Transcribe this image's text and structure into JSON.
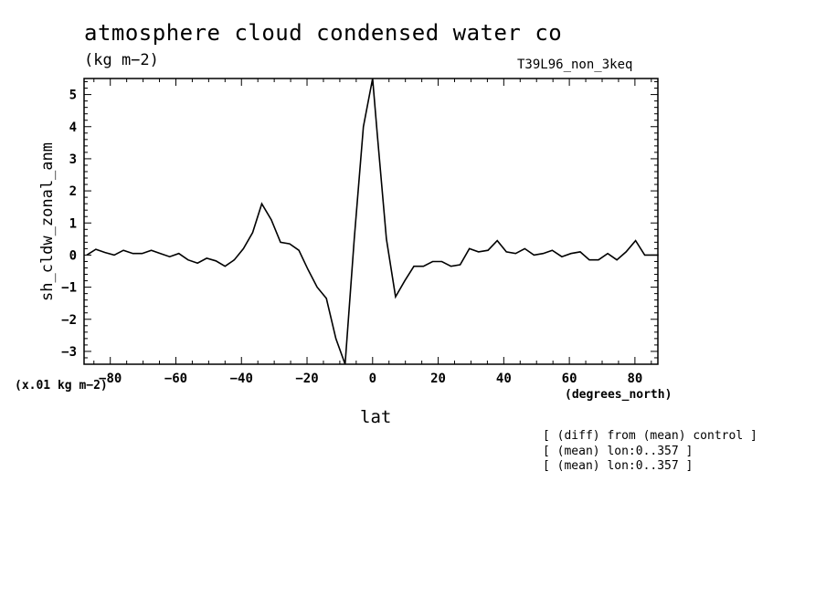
{
  "header": {
    "title": "atmosphere cloud condensed water co",
    "units": "(kg m−2)",
    "run": "T39L96_non_3keq"
  },
  "axes": {
    "ylabel": "sh_cldw_zonal_anm",
    "scale_note": "(x.01 kg m−2)",
    "xunits": "(degrees_north)",
    "xlabel": "lat"
  },
  "notes": [
    "[ (diff) from (mean) control ]",
    "[ (mean) lon:0..357 ]",
    "[ (mean) lon:0..357 ]"
  ],
  "chart_data": {
    "type": "line",
    "title": "atmosphere cloud condensed water co",
    "xlabel": "lat",
    "ylabel": "sh_cldw_zonal_anm",
    "xlim": [
      -88,
      87
    ],
    "ylim": [
      -3.4,
      5.5
    ],
    "xticks": [
      -80,
      -60,
      -40,
      -20,
      0,
      20,
      40,
      60,
      80
    ],
    "xtick_labels": [
      "−80",
      "−60",
      "−40",
      "−20",
      "0",
      "20",
      "40",
      "60",
      "80"
    ],
    "yticks": [
      -3,
      -2,
      -1,
      0,
      1,
      2,
      3,
      4,
      5
    ],
    "ytick_labels": [
      "−3",
      "−2",
      "−1",
      "0",
      "1",
      "2",
      "3",
      "4",
      "5"
    ],
    "grid": false,
    "series": [
      {
        "color": "#000000",
        "x": [
          -87.2,
          -84.4,
          -81.6,
          -78.8,
          -76.0,
          -73.1,
          -70.3,
          -67.5,
          -64.7,
          -61.9,
          -59.1,
          -56.3,
          -53.4,
          -50.6,
          -47.8,
          -45.0,
          -42.2,
          -39.4,
          -36.6,
          -33.8,
          -30.9,
          -28.1,
          -25.3,
          -22.5,
          -19.7,
          -16.9,
          -14.1,
          -11.2,
          -8.4,
          -5.6,
          -2.8,
          0,
          1.4,
          4.2,
          7.0,
          9.8,
          12.6,
          15.5,
          18.3,
          21.1,
          23.9,
          26.7,
          29.5,
          32.3,
          35.2,
          38.0,
          40.8,
          43.6,
          46.4,
          49.2,
          52.0,
          54.8,
          57.7,
          60.5,
          63.3,
          66.1,
          68.9,
          71.7,
          74.5,
          77.3,
          80.2,
          83.0,
          85.8,
          87.2
        ],
        "y": [
          0.0,
          0.18,
          0.08,
          0.0,
          0.15,
          0.05,
          0.05,
          0.15,
          0.05,
          -0.05,
          0.05,
          -0.15,
          -0.25,
          -0.1,
          -0.18,
          -0.35,
          -0.15,
          0.2,
          0.7,
          1.6,
          1.1,
          0.4,
          0.35,
          0.15,
          -0.45,
          -1.0,
          -1.35,
          -2.6,
          -3.4,
          0.5,
          4.0,
          5.5,
          3.8,
          0.5,
          -1.3,
          -0.8,
          -0.35,
          -0.35,
          -0.2,
          -0.2,
          -0.35,
          -0.3,
          0.2,
          0.1,
          0.15,
          0.45,
          0.1,
          0.05,
          0.2,
          0.0,
          0.05,
          0.15,
          -0.05,
          0.05,
          0.1,
          -0.15,
          -0.15,
          0.05,
          -0.15,
          0.1,
          0.45,
          0.0,
          0.0,
          0.0
        ]
      }
    ]
  }
}
